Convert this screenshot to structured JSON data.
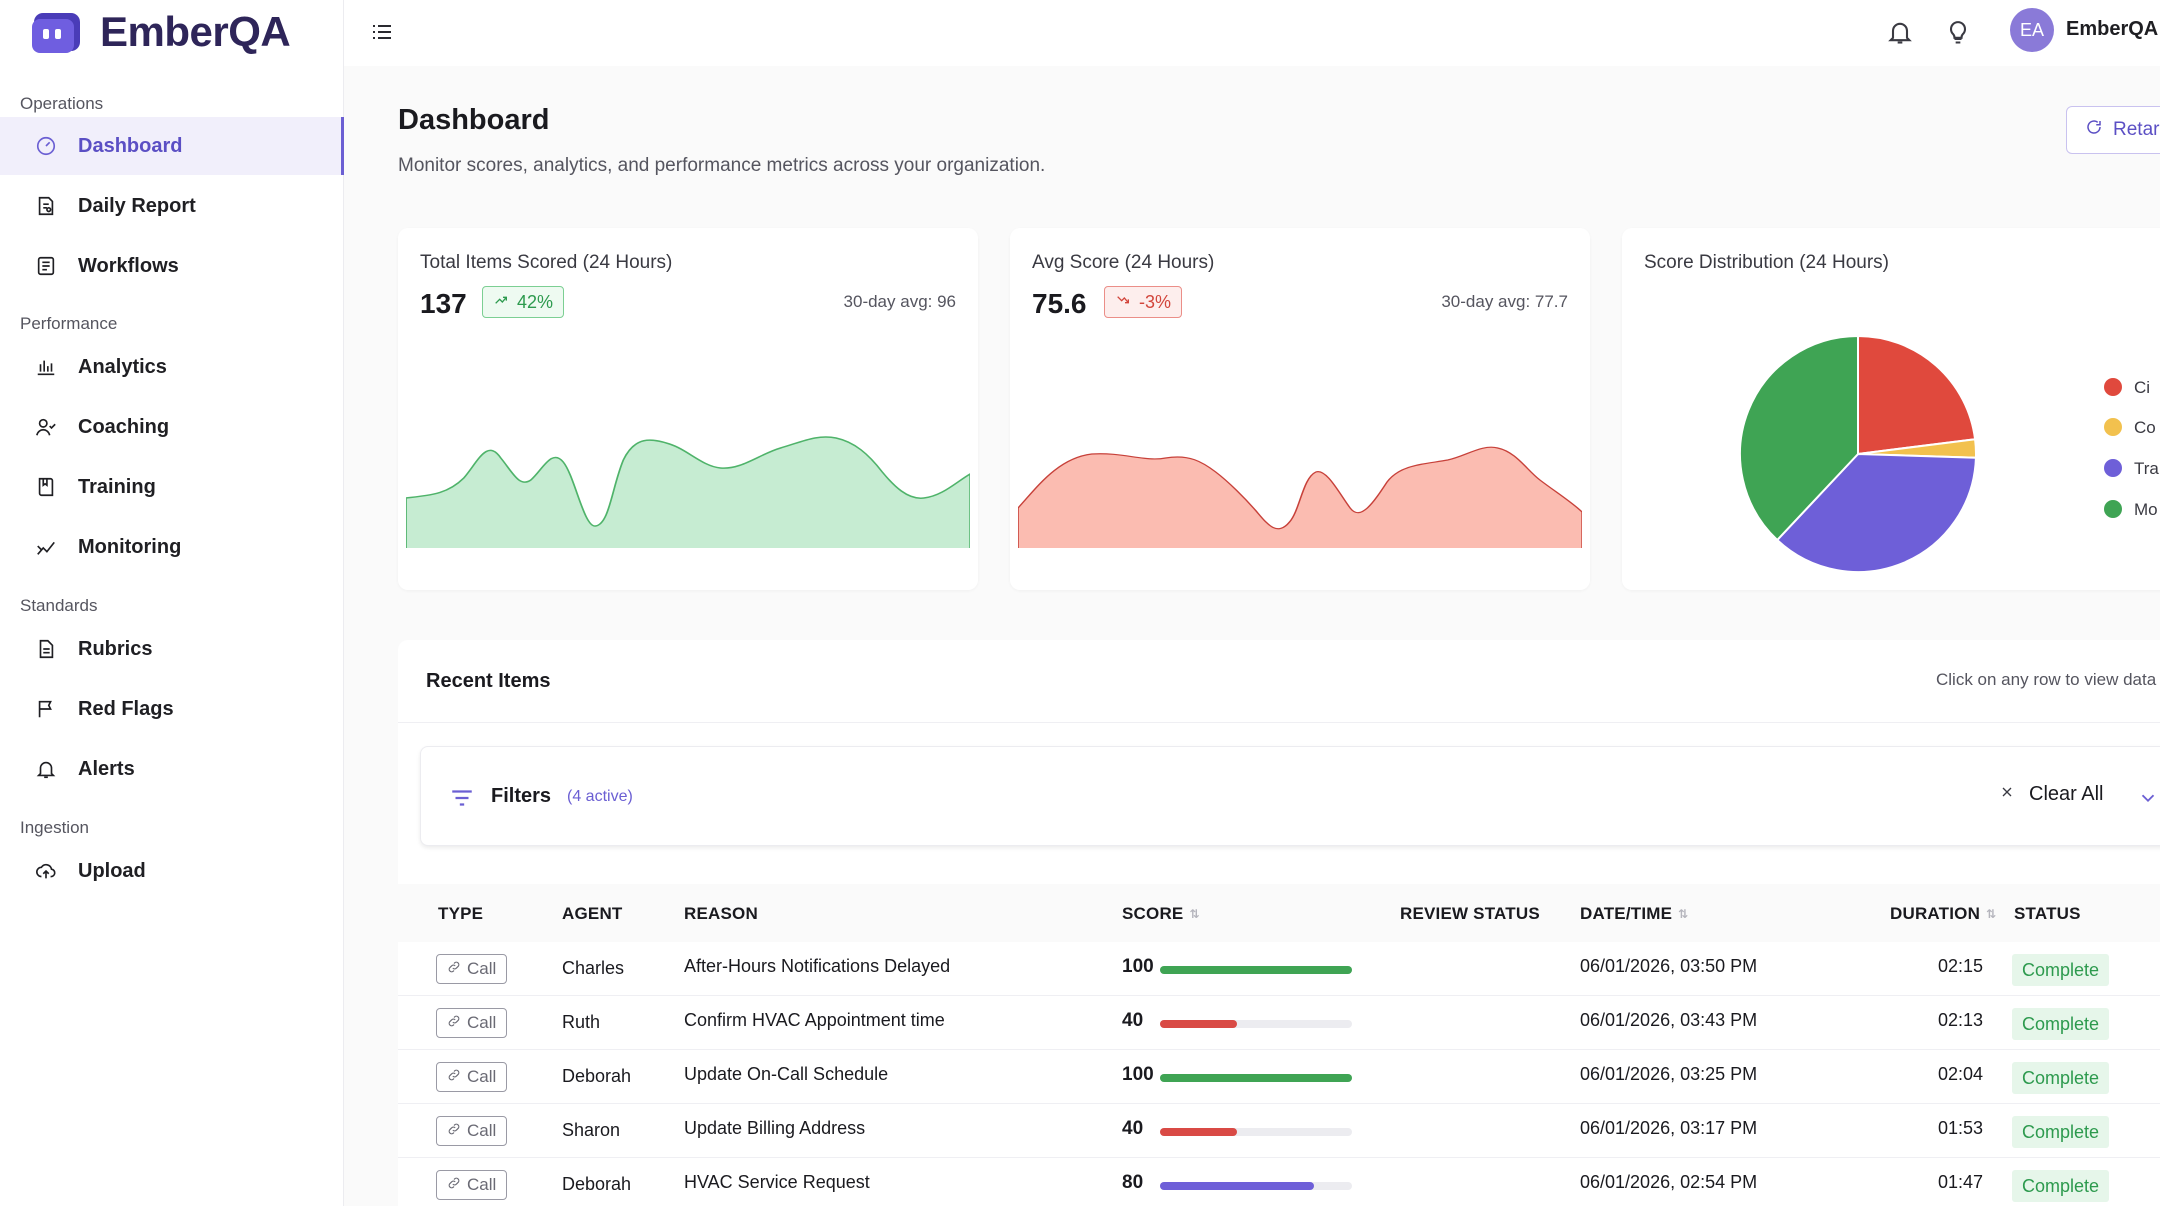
{
  "brand": {
    "name": "EmberQA"
  },
  "sidebar": {
    "sections": [
      {
        "label": "Operations"
      },
      {
        "label": "Performance"
      },
      {
        "label": "Standards"
      },
      {
        "label": "Ingestion"
      }
    ],
    "items": [
      {
        "label": "Dashboard",
        "icon": "gauge-icon",
        "active": true
      },
      {
        "label": "Daily Report",
        "icon": "report-icon"
      },
      {
        "label": "Workflows",
        "icon": "workflow-icon"
      },
      {
        "label": "Analytics",
        "icon": "bar-chart-icon"
      },
      {
        "label": "Coaching",
        "icon": "users-icon"
      },
      {
        "label": "Training",
        "icon": "book-icon"
      },
      {
        "label": "Monitoring",
        "icon": "trend-icon"
      },
      {
        "label": "Rubrics",
        "icon": "document-icon"
      },
      {
        "label": "Red Flags",
        "icon": "flag-icon"
      },
      {
        "label": "Alerts",
        "icon": "bell-icon"
      },
      {
        "label": "Upload",
        "icon": "cloud-upload-icon"
      }
    ]
  },
  "topbar": {
    "avatar_initials": "EA",
    "user_name": "EmberQA"
  },
  "page": {
    "title": "Dashboard",
    "subtitle": "Monitor scores, analytics, and performance metrics across your organization.",
    "retarget_label": "Retar"
  },
  "cards": {
    "total": {
      "title": "Total Items Scored (24 Hours)",
      "value": "137",
      "delta": "42%",
      "avg": "30-day avg: 96"
    },
    "avg": {
      "title": "Avg Score (24 Hours)",
      "value": "75.6",
      "delta": "-3%",
      "avg": "30-day avg: 77.7"
    },
    "dist": {
      "title": "Score Distribution (24 Hours)",
      "legend": [
        "Ci",
        "Co",
        "Tra",
        "Mo"
      ]
    }
  },
  "chart_data": {
    "type": "pie",
    "title": "Score Distribution (24 Hours)",
    "slices": [
      {
        "label": "Ci",
        "value": 23,
        "color": "#e0493d"
      },
      {
        "label": "Co",
        "value": 2.5,
        "color": "#f2c14e"
      },
      {
        "label": "Tra",
        "value": 36.5,
        "color": "#6e5fd8"
      },
      {
        "label": "Mo",
        "value": 38,
        "color": "#3fa454"
      }
    ]
  },
  "colors": {
    "accent": "#6b5fd3",
    "positive": "#2d9a4e",
    "negative": "#d2453b",
    "bar_high": "#3fa454",
    "bar_low": "#d94a45",
    "bar_mid": "#6e5fd8"
  },
  "recent": {
    "title": "Recent Items",
    "hint": "Click on any row to view data",
    "filters_label": "Filters",
    "filters_active": "(4 active)",
    "clear_all": "Clear All",
    "columns": [
      "TYPE",
      "AGENT",
      "REASON",
      "SCORE",
      "REVIEW STATUS",
      "DATE/TIME",
      "DURATION",
      "STATUS"
    ],
    "rows": [
      {
        "type": "Call",
        "agent": "Charles",
        "reason": "After-Hours Notifications Delayed",
        "score": "100",
        "score_pct": 1.0,
        "bar": "high",
        "review": "",
        "datetime": "06/01/2026, 03:50 PM",
        "duration": "02:15",
        "status": "Complete"
      },
      {
        "type": "Call",
        "agent": "Ruth",
        "reason": "Confirm HVAC Appointment time",
        "score": "40",
        "score_pct": 0.4,
        "bar": "low",
        "review": "",
        "datetime": "06/01/2026, 03:43 PM",
        "duration": "02:13",
        "status": "Complete"
      },
      {
        "type": "Call",
        "agent": "Deborah",
        "reason": "Update On-Call Schedule",
        "score": "100",
        "score_pct": 1.0,
        "bar": "high",
        "review": "",
        "datetime": "06/01/2026, 03:25 PM",
        "duration": "02:04",
        "status": "Complete"
      },
      {
        "type": "Call",
        "agent": "Sharon",
        "reason": "Update Billing Address",
        "score": "40",
        "score_pct": 0.4,
        "bar": "low",
        "review": "",
        "datetime": "06/01/2026, 03:17 PM",
        "duration": "01:53",
        "status": "Complete"
      },
      {
        "type": "Call",
        "agent": "Deborah",
        "reason": "HVAC Service Request",
        "score": "80",
        "score_pct": 0.8,
        "bar": "mid",
        "review": "",
        "datetime": "06/01/2026, 02:54 PM",
        "duration": "01:47",
        "status": "Complete"
      }
    ]
  }
}
